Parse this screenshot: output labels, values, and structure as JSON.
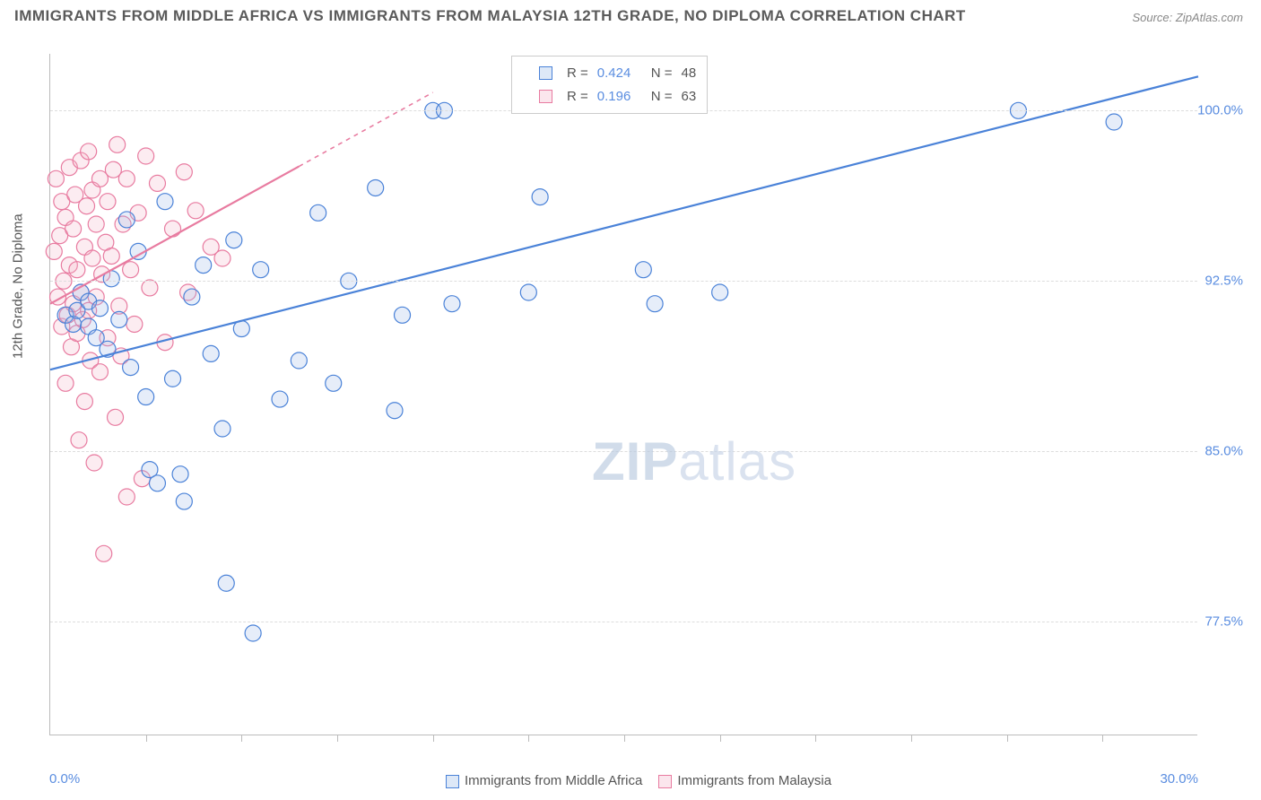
{
  "title": "IMMIGRANTS FROM MIDDLE AFRICA VS IMMIGRANTS FROM MALAYSIA 12TH GRADE, NO DIPLOMA CORRELATION CHART",
  "source": "Source: ZipAtlas.com",
  "watermark": {
    "part1": "ZIP",
    "part2": "atlas"
  },
  "chart": {
    "type": "scatter",
    "y_axis_label": "12th Grade, No Diploma",
    "xlim": [
      0.0,
      30.0
    ],
    "ylim": [
      72.5,
      102.5
    ],
    "x_tick_min_label": "0.0%",
    "x_tick_max_label": "30.0%",
    "y_ticks": [
      77.5,
      85.0,
      92.5,
      100.0
    ],
    "y_tick_labels": [
      "77.5%",
      "85.0%",
      "92.5%",
      "100.0%"
    ],
    "x_ticks": [
      2.5,
      5.0,
      7.5,
      10.0,
      12.5,
      15.0,
      17.5,
      20.0,
      22.5,
      25.0,
      27.5
    ],
    "grid_color": "#dddddd",
    "axis_color": "#bbbbbb",
    "tick_label_color": "#5a8de0",
    "background_color": "#ffffff",
    "marker_radius": 9,
    "marker_stroke_width": 1.2,
    "marker_fill_opacity": 0.25,
    "line_width": 2.2,
    "series": [
      {
        "name": "Immigrants from Middle Africa",
        "color_stroke": "#4a82d8",
        "color_fill": "#9ab9e8",
        "R": "0.424",
        "N": "48",
        "trend": {
          "x1": 0.0,
          "y1": 88.6,
          "x2": 30.0,
          "y2": 101.5,
          "dash_from_x": 30.0
        },
        "points": [
          [
            0.4,
            91.0
          ],
          [
            0.6,
            90.6
          ],
          [
            0.7,
            91.2
          ],
          [
            0.8,
            92.0
          ],
          [
            1.0,
            90.5
          ],
          [
            1.0,
            91.6
          ],
          [
            1.2,
            90.0
          ],
          [
            1.3,
            91.3
          ],
          [
            1.5,
            89.5
          ],
          [
            1.6,
            92.6
          ],
          [
            1.8,
            90.8
          ],
          [
            2.0,
            95.2
          ],
          [
            2.1,
            88.7
          ],
          [
            2.3,
            93.8
          ],
          [
            2.5,
            87.4
          ],
          [
            2.6,
            84.2
          ],
          [
            2.8,
            83.6
          ],
          [
            3.0,
            96.0
          ],
          [
            3.2,
            88.2
          ],
          [
            3.4,
            84.0
          ],
          [
            3.5,
            82.8
          ],
          [
            3.7,
            91.8
          ],
          [
            4.0,
            93.2
          ],
          [
            4.2,
            89.3
          ],
          [
            4.5,
            86.0
          ],
          [
            4.6,
            79.2
          ],
          [
            4.8,
            94.3
          ],
          [
            5.0,
            90.4
          ],
          [
            5.3,
            77.0
          ],
          [
            5.5,
            93.0
          ],
          [
            6.0,
            87.3
          ],
          [
            6.5,
            89.0
          ],
          [
            7.0,
            95.5
          ],
          [
            7.4,
            88.0
          ],
          [
            7.8,
            92.5
          ],
          [
            8.5,
            96.6
          ],
          [
            9.0,
            86.8
          ],
          [
            9.2,
            91.0
          ],
          [
            10.0,
            100.0
          ],
          [
            10.3,
            100.0
          ],
          [
            10.5,
            91.5
          ],
          [
            12.5,
            92.0
          ],
          [
            12.8,
            96.2
          ],
          [
            15.5,
            93.0
          ],
          [
            15.8,
            91.5
          ],
          [
            17.5,
            92.0
          ],
          [
            25.3,
            100.0
          ],
          [
            27.8,
            99.5
          ]
        ]
      },
      {
        "name": "Immigrants from Malaysia",
        "color_stroke": "#e87ba0",
        "color_fill": "#f4b5c9",
        "R": "0.196",
        "N": "63",
        "trend": {
          "x1": 0.0,
          "y1": 91.5,
          "x2": 10.0,
          "y2": 100.8,
          "dash_from_x": 6.5
        },
        "points": [
          [
            0.1,
            93.8
          ],
          [
            0.15,
            97.0
          ],
          [
            0.2,
            91.8
          ],
          [
            0.25,
            94.5
          ],
          [
            0.3,
            90.5
          ],
          [
            0.3,
            96.0
          ],
          [
            0.35,
            92.5
          ],
          [
            0.4,
            88.0
          ],
          [
            0.4,
            95.3
          ],
          [
            0.45,
            91.0
          ],
          [
            0.5,
            93.2
          ],
          [
            0.5,
            97.5
          ],
          [
            0.55,
            89.6
          ],
          [
            0.6,
            94.8
          ],
          [
            0.6,
            91.5
          ],
          [
            0.65,
            96.3
          ],
          [
            0.7,
            90.2
          ],
          [
            0.7,
            93.0
          ],
          [
            0.75,
            85.5
          ],
          [
            0.8,
            92.0
          ],
          [
            0.8,
            97.8
          ],
          [
            0.85,
            90.8
          ],
          [
            0.9,
            94.0
          ],
          [
            0.9,
            87.2
          ],
          [
            0.95,
            95.8
          ],
          [
            1.0,
            91.2
          ],
          [
            1.0,
            98.2
          ],
          [
            1.05,
            89.0
          ],
          [
            1.1,
            93.5
          ],
          [
            1.1,
            96.5
          ],
          [
            1.15,
            84.5
          ],
          [
            1.2,
            91.8
          ],
          [
            1.2,
            95.0
          ],
          [
            1.3,
            88.5
          ],
          [
            1.3,
            97.0
          ],
          [
            1.35,
            92.8
          ],
          [
            1.4,
            80.5
          ],
          [
            1.45,
            94.2
          ],
          [
            1.5,
            90.0
          ],
          [
            1.5,
            96.0
          ],
          [
            1.6,
            93.6
          ],
          [
            1.65,
            97.4
          ],
          [
            1.7,
            86.5
          ],
          [
            1.75,
            98.5
          ],
          [
            1.8,
            91.4
          ],
          [
            1.85,
            89.2
          ],
          [
            1.9,
            95.0
          ],
          [
            2.0,
            83.0
          ],
          [
            2.0,
            97.0
          ],
          [
            2.1,
            93.0
          ],
          [
            2.2,
            90.6
          ],
          [
            2.3,
            95.5
          ],
          [
            2.4,
            83.8
          ],
          [
            2.5,
            98.0
          ],
          [
            2.6,
            92.2
          ],
          [
            2.8,
            96.8
          ],
          [
            3.0,
            89.8
          ],
          [
            3.2,
            94.8
          ],
          [
            3.5,
            97.3
          ],
          [
            3.6,
            92.0
          ],
          [
            3.8,
            95.6
          ],
          [
            4.2,
            94.0
          ],
          [
            4.5,
            93.5
          ]
        ]
      }
    ]
  }
}
